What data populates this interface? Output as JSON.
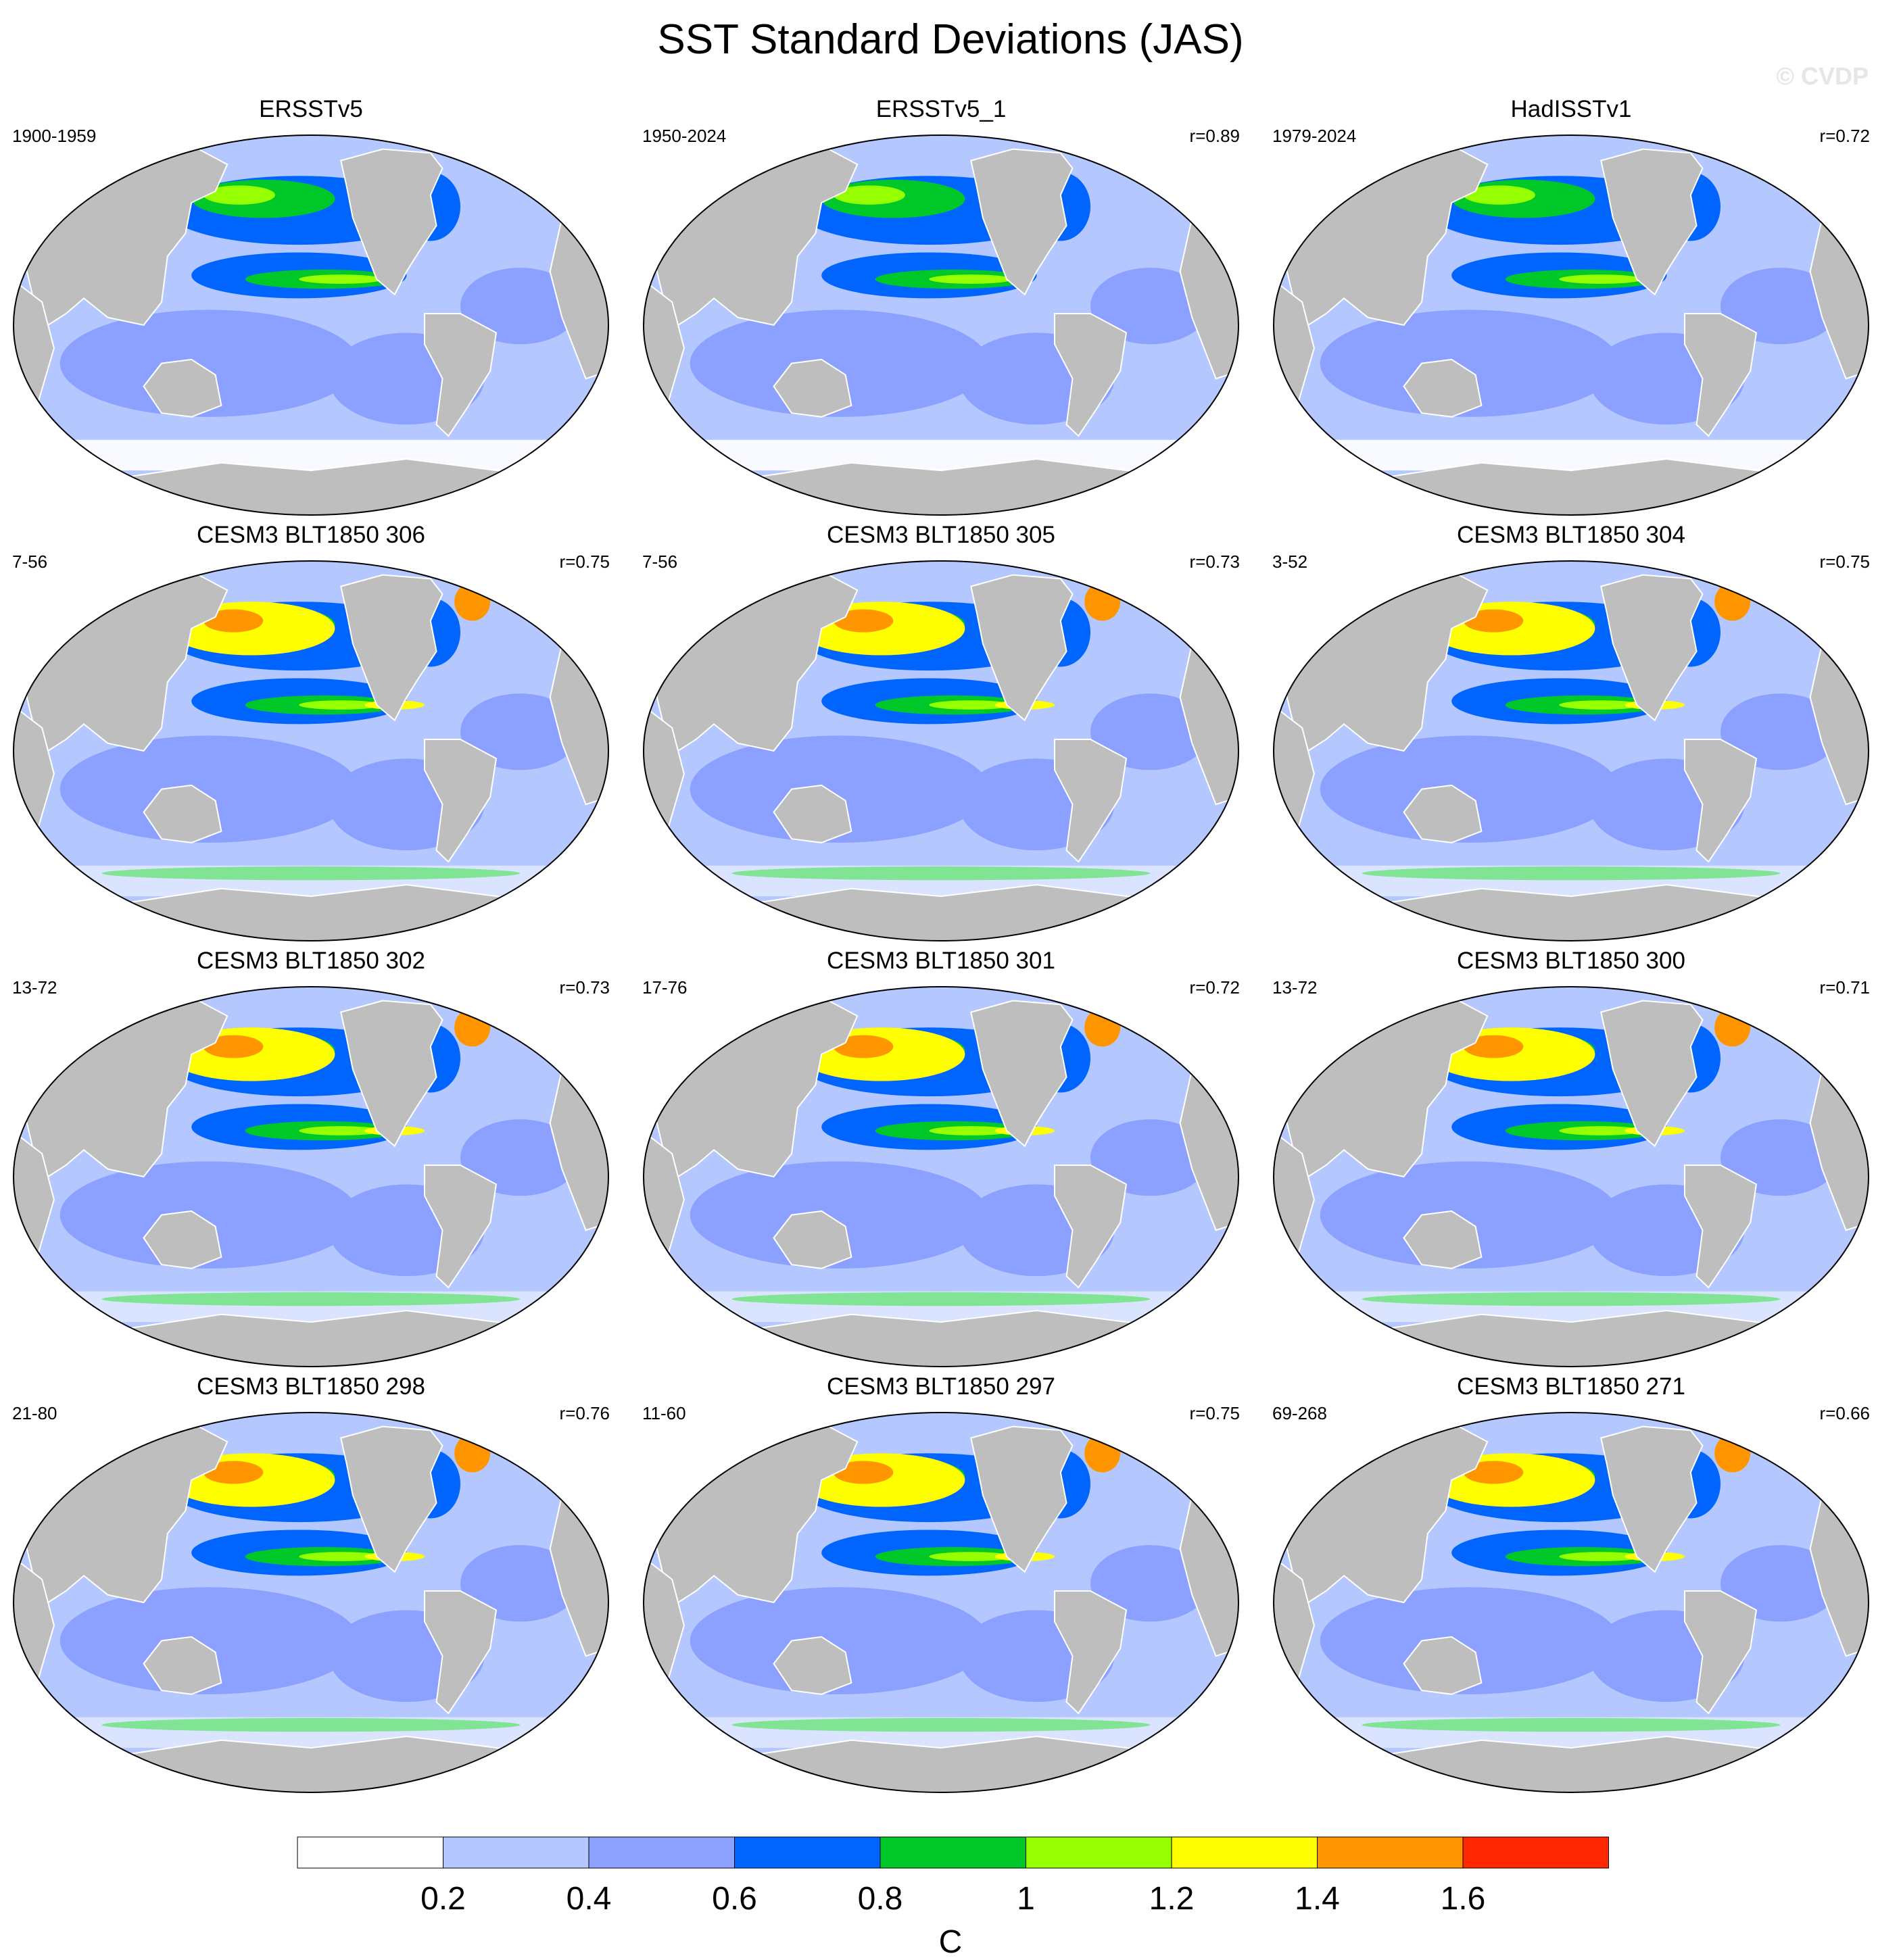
{
  "title": "SST Standard Deviations (JAS)",
  "watermark": "© CVDP",
  "panels": [
    {
      "title": "ERSSTv5",
      "left": "1900-1959",
      "right": ""
    },
    {
      "title": "ERSSTv5_1",
      "left": "1950-2024",
      "right": "r=0.89"
    },
    {
      "title": "HadISSTv1",
      "left": "1979-2024",
      "right": "r=0.72"
    },
    {
      "title": "CESM3 BLT1850 306",
      "left": "7-56",
      "right": "r=0.75"
    },
    {
      "title": "CESM3 BLT1850 305",
      "left": "7-56",
      "right": "r=0.73"
    },
    {
      "title": "CESM3 BLT1850 304",
      "left": "3-52",
      "right": "r=0.75"
    },
    {
      "title": "CESM3 BLT1850 302",
      "left": "13-72",
      "right": "r=0.73"
    },
    {
      "title": "CESM3 BLT1850 301",
      "left": "17-76",
      "right": "r=0.72"
    },
    {
      "title": "CESM3 BLT1850 300",
      "left": "13-72",
      "right": "r=0.71"
    },
    {
      "title": "CESM3 BLT1850 298",
      "left": "21-80",
      "right": "r=0.76"
    },
    {
      "title": "CESM3 BLT1850 297",
      "left": "11-60",
      "right": "r=0.75"
    },
    {
      "title": "CESM3 BLT1850 271",
      "left": "69-268",
      "right": "r=0.66"
    }
  ],
  "colorbar": {
    "colors": [
      "#ffffff",
      "#b4c8ff",
      "#8ca0ff",
      "#0064ff",
      "#00c828",
      "#96ff00",
      "#ffff00",
      "#ff9600",
      "#ff2800"
    ],
    "labels": [
      "0.2",
      "0.4",
      "0.6",
      "0.8",
      "1",
      "1.2",
      "1.4",
      "1.6"
    ],
    "unit": "C"
  },
  "land_color": "#bebebe"
}
